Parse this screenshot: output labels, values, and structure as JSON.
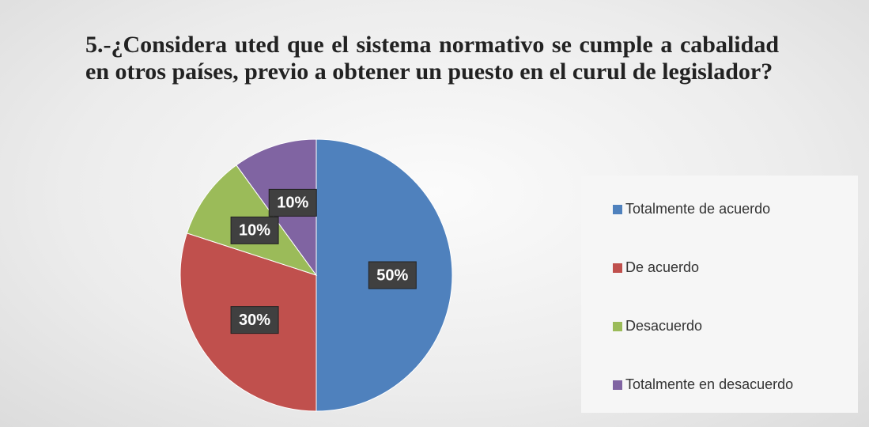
{
  "chart_data": {
    "type": "pie",
    "title": "5.-¿Considera uted  que el sistema normativo se cumple a cabalidad en otros países, previo a obtener un puesto en el curul de legislador?",
    "categories": [
      "Totalmente de acuerdo",
      "De acuerdo",
      "Desacuerdo",
      "Totalmente en desacuerdo"
    ],
    "values": [
      50,
      30,
      10,
      10
    ],
    "value_labels": [
      "50%",
      "30%",
      "10%",
      "10%"
    ],
    "colors": [
      "#4f81bd",
      "#c0504d",
      "#9bbb59",
      "#8064a2"
    ],
    "legend": "right"
  }
}
